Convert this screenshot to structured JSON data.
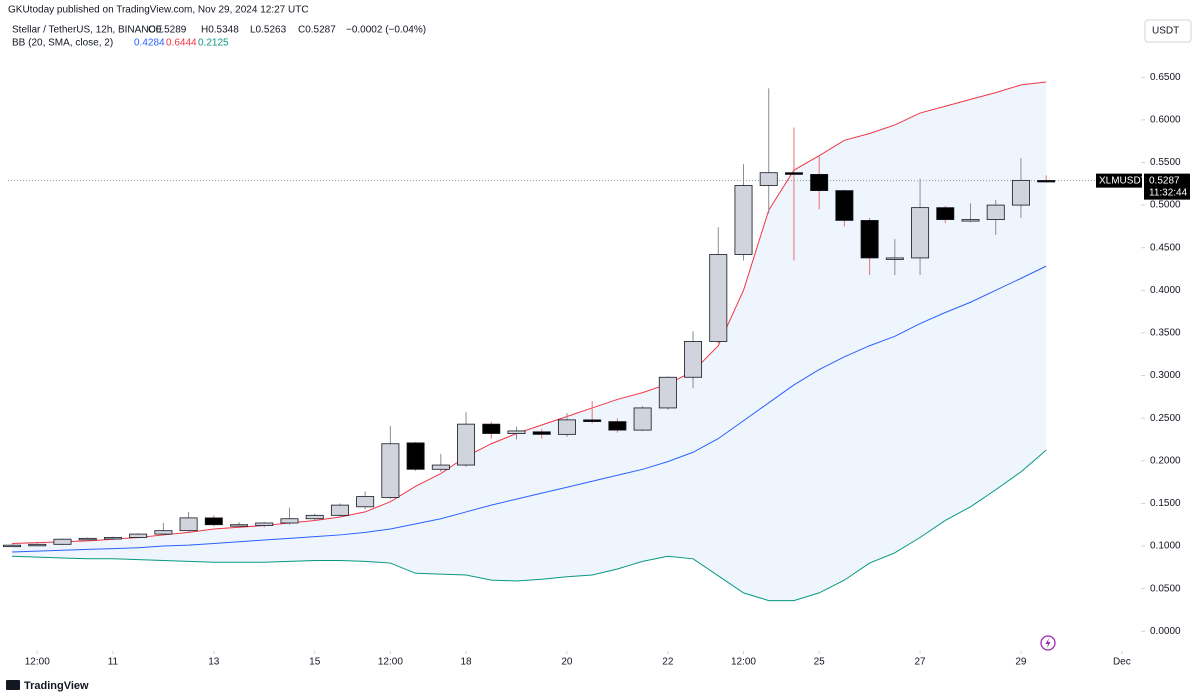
{
  "header": {
    "attribution": "GKUtoday published on TradingView.com, Nov 29, 2024 12:27 UTC",
    "brand": "TradingView"
  },
  "chart_data": {
    "type": "candlestick",
    "symbol_line": "Stellar / TetherUS, 12h, BINANCE",
    "ohlc_legend": [
      "O0.5289",
      "H0.5348",
      "L0.5263",
      "C0.5287",
      "−0.0002 (−0.04%)"
    ],
    "indicator": "BB (20, SMA, close, 2)",
    "currency": "USDT",
    "ticker": "XLMUSDT",
    "countdown": "11:32:44",
    "x": [
      9,
      9.5,
      10,
      10.5,
      11,
      11.5,
      12,
      12.5,
      13,
      13.5,
      14,
      14.5,
      15,
      15.5,
      16,
      16.5,
      17,
      17.5,
      18,
      18.5,
      19,
      19.5,
      20,
      20.5,
      21,
      21.5,
      22,
      22.5,
      23,
      23.5,
      24,
      24.5,
      25,
      25.5,
      26,
      26.5,
      27,
      27.5,
      28,
      28.5,
      29,
      29.5
    ],
    "open": [
      0.101,
      0.101,
      0.102,
      0.108,
      0.109,
      0.11,
      0.114,
      0.118,
      0.133,
      0.125,
      0.124,
      0.127,
      0.132,
      0.136,
      0.146,
      0.157,
      0.221,
      0.19,
      0.195,
      0.243,
      0.232,
      0.234,
      0.231,
      0.248,
      0.246,
      0.236,
      0.262,
      0.298,
      0.34,
      0.442,
      0.523,
      0.538,
      0.536,
      0.517,
      0.482,
      0.438,
      0.438,
      0.497,
      0.483,
      0.483,
      0.5,
      0.5289
    ],
    "high": [
      0.102,
      0.103,
      0.109,
      0.11,
      0.111,
      0.115,
      0.127,
      0.14,
      0.136,
      0.128,
      0.128,
      0.145,
      0.138,
      0.15,
      0.164,
      0.241,
      0.222,
      0.208,
      0.257,
      0.246,
      0.24,
      0.237,
      0.256,
      0.27,
      0.25,
      0.264,
      0.299,
      0.352,
      0.474,
      0.548,
      0.637,
      0.591,
      0.558,
      0.518,
      0.485,
      0.46,
      0.531,
      0.499,
      0.502,
      0.506,
      0.555,
      0.5348
    ],
    "low": [
      0.1,
      0.1,
      0.101,
      0.107,
      0.107,
      0.109,
      0.113,
      0.116,
      0.123,
      0.123,
      0.122,
      0.125,
      0.13,
      0.134,
      0.143,
      0.155,
      0.188,
      0.187,
      0.193,
      0.226,
      0.225,
      0.226,
      0.228,
      0.244,
      0.233,
      0.235,
      0.26,
      0.285,
      0.338,
      0.435,
      0.49,
      0.435,
      0.495,
      0.475,
      0.418,
      0.418,
      0.418,
      0.479,
      0.48,
      0.465,
      0.485,
      0.5263
    ],
    "close": [
      0.101,
      0.102,
      0.108,
      0.109,
      0.11,
      0.114,
      0.118,
      0.133,
      0.125,
      0.125,
      0.127,
      0.132,
      0.136,
      0.148,
      0.158,
      0.22,
      0.19,
      0.195,
      0.243,
      0.232,
      0.235,
      0.231,
      0.248,
      0.246,
      0.236,
      0.262,
      0.298,
      0.34,
      0.442,
      0.523,
      0.538,
      0.536,
      0.517,
      0.482,
      0.438,
      0.438,
      0.497,
      0.483,
      0.483,
      0.5,
      0.529,
      0.5287
    ],
    "up_color": "#d1d4dc",
    "down_color": "#000000",
    "body_border": "#131722",
    "up_wick_color": "#8a8d96",
    "down_wick_color": "#e57373",
    "band_fill": "#eef5fd",
    "bands": [
      {
        "color": "#2962ff",
        "values": [
          0.093,
          0.094,
          0.095,
          0.096,
          0.097,
          0.098,
          0.1,
          0.101,
          0.103,
          0.105,
          0.107,
          0.109,
          0.111,
          0.113,
          0.116,
          0.12,
          0.126,
          0.132,
          0.14,
          0.148,
          0.155,
          0.162,
          0.169,
          0.176,
          0.183,
          0.19,
          0.199,
          0.21,
          0.226,
          0.247,
          0.268,
          0.289,
          0.307,
          0.322,
          0.335,
          0.346,
          0.361,
          0.374,
          0.386,
          0.4,
          0.414,
          0.4284
        ]
      },
      {
        "color": "#f23645",
        "values": [
          0.103,
          0.104,
          0.105,
          0.106,
          0.108,
          0.11,
          0.113,
          0.116,
          0.12,
          0.122,
          0.124,
          0.127,
          0.13,
          0.134,
          0.14,
          0.152,
          0.17,
          0.185,
          0.205,
          0.22,
          0.232,
          0.242,
          0.252,
          0.262,
          0.272,
          0.28,
          0.29,
          0.305,
          0.335,
          0.4,
          0.494,
          0.541,
          0.558,
          0.576,
          0.584,
          0.594,
          0.608,
          0.616,
          0.624,
          0.632,
          0.641,
          0.6444
        ]
      },
      {
        "color": "#089981",
        "values": [
          0.088,
          0.087,
          0.086,
          0.085,
          0.085,
          0.084,
          0.083,
          0.082,
          0.081,
          0.081,
          0.081,
          0.082,
          0.083,
          0.083,
          0.082,
          0.08,
          0.068,
          0.067,
          0.066,
          0.06,
          0.059,
          0.061,
          0.064,
          0.066,
          0.073,
          0.082,
          0.088,
          0.085,
          0.065,
          0.045,
          0.036,
          0.036,
          0.045,
          0.06,
          0.08,
          0.092,
          0.11,
          0.13,
          0.146,
          0.166,
          0.187,
          0.2125
        ]
      }
    ],
    "xlim": [
      8.92,
      31.36
    ],
    "xticks": [
      {
        "value": 9.5,
        "label": "12:00"
      },
      11,
      13,
      15,
      {
        "value": 16.5,
        "label": "12:00"
      },
      18,
      20,
      22,
      {
        "value": 23.5,
        "label": "12:00"
      },
      25,
      27,
      29,
      {
        "value": 31,
        "label": "Dec"
      }
    ],
    "ylim": [
      -0.022,
      0.689
    ],
    "yticks": [
      {
        "value": 0,
        "label": "0.0000"
      },
      {
        "value": 0.05,
        "label": "0.0500"
      },
      {
        "value": 0.1,
        "label": "0.1000"
      },
      {
        "value": 0.15,
        "label": "0.1500"
      },
      {
        "value": 0.2,
        "label": "0.2000"
      },
      {
        "value": 0.25,
        "label": "0.2500"
      },
      {
        "value": 0.3,
        "label": "0.3000"
      },
      {
        "value": 0.35,
        "label": "0.3500"
      },
      {
        "value": 0.4,
        "label": "0.4000"
      },
      {
        "value": 0.45,
        "label": "0.4500"
      },
      {
        "value": 0.5,
        "label": "0.5000"
      },
      {
        "value": 0.55,
        "label": "0.5500"
      },
      {
        "value": 0.6,
        "label": "0.6000"
      },
      {
        "value": 0.65,
        "label": "0.6500"
      }
    ],
    "grid": false
  }
}
